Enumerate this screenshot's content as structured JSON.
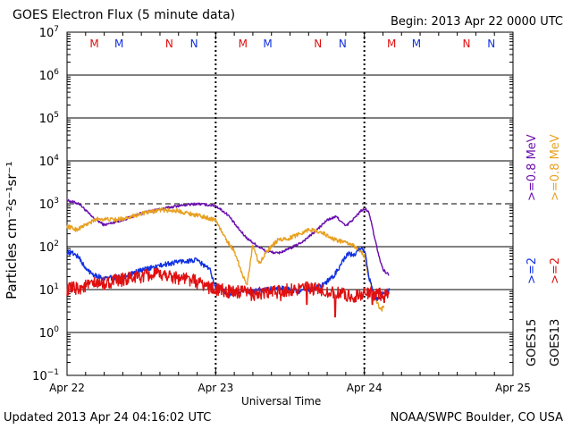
{
  "header": {
    "title": "GOES Electron Flux (5 minute data)",
    "begin": "Begin: 2013 Apr 22 0000 UTC"
  },
  "footer": {
    "updated": "Updated 2013 Apr 24 04:16:02 UTC",
    "credit": "NOAA/SWPC Boulder, CO USA"
  },
  "colors": {
    "purple": "#6a0dad",
    "orange": "#e8a020",
    "blue": "#1030e0",
    "red": "#e01010",
    "grid": "#000000"
  },
  "legend": {
    "goes15_ge08": ">=0.8  MeV",
    "goes15_ge2": ">=2",
    "goes13_ge08": ">=0.8  MeV",
    "goes13_ge2": ">=2",
    "goes15": "GOES15",
    "goes13": "GOES13"
  },
  "chart_data": {
    "type": "line",
    "title": "GOES Electron Flux (5 minute data)",
    "xlabel": "Universal Time",
    "ylabel": "Particles cm⁻²s⁻¹sr⁻¹",
    "yscale": "log",
    "ylim_exponent": [
      -1,
      7
    ],
    "y_ticks": [
      {
        "exp": 7,
        "label": "10",
        "sup": "7"
      },
      {
        "exp": 6,
        "label": "10",
        "sup": "6"
      },
      {
        "exp": 5,
        "label": "10",
        "sup": "5"
      },
      {
        "exp": 4,
        "label": "10",
        "sup": "4"
      },
      {
        "exp": 3,
        "label": "10",
        "sup": "3"
      },
      {
        "exp": 2,
        "label": "10",
        "sup": "2"
      },
      {
        "exp": 1,
        "label": "10",
        "sup": "1"
      },
      {
        "exp": 0,
        "label": "10",
        "sup": "0"
      },
      {
        "exp": -1,
        "label": "10",
        "sup": "−1"
      }
    ],
    "xlim_hours": [
      0,
      72
    ],
    "x_ticks": [
      {
        "hour": 0,
        "label": "Apr 22"
      },
      {
        "hour": 24,
        "label": "Apr 23"
      },
      {
        "hour": 48,
        "label": "Apr 24"
      },
      {
        "hour": 72,
        "label": "Apr 25"
      }
    ],
    "threshold_line": 1000,
    "day_markers_hours": [
      24,
      48
    ],
    "noon_midnight_markers": [
      {
        "hour": 4.4,
        "label": "M",
        "color": "#e01010"
      },
      {
        "hour": 8.4,
        "label": "M",
        "color": "#1030e0"
      },
      {
        "hour": 16.5,
        "label": "N",
        "color": "#e01010"
      },
      {
        "hour": 20.5,
        "label": "N",
        "color": "#1030e0"
      },
      {
        "hour": 28.4,
        "label": "M",
        "color": "#e01010"
      },
      {
        "hour": 32.4,
        "label": "M",
        "color": "#1030e0"
      },
      {
        "hour": 40.5,
        "label": "N",
        "color": "#e01010"
      },
      {
        "hour": 44.5,
        "label": "N",
        "color": "#1030e0"
      },
      {
        "hour": 52.4,
        "label": "M",
        "color": "#e01010"
      },
      {
        "hour": 56.4,
        "label": "M",
        "color": "#1030e0"
      },
      {
        "hour": 64.5,
        "label": "N",
        "color": "#e01010"
      },
      {
        "hour": 68.5,
        "label": "N",
        "color": "#1030e0"
      }
    ],
    "series": [
      {
        "name": "GOES15 >=0.8 MeV",
        "color": "#6a0dad",
        "noise": 0.03,
        "hours": [
          0,
          2,
          4,
          6,
          9,
          12,
          15,
          18,
          21,
          24,
          26,
          27.5,
          29,
          30.5,
          32,
          34,
          36,
          38,
          40,
          42,
          43.5,
          45,
          46.5,
          47.5,
          48.2,
          48.8,
          49.5,
          50,
          50.5,
          51,
          51.5,
          52
        ],
        "values": [
          1200,
          1000,
          500,
          320,
          420,
          600,
          750,
          900,
          1000,
          900,
          550,
          280,
          160,
          110,
          80,
          70,
          90,
          130,
          220,
          420,
          500,
          300,
          480,
          700,
          750,
          600,
          200,
          100,
          50,
          30,
          25,
          22
        ]
      },
      {
        "name": "GOES13 >=0.8 MeV",
        "color": "#e8a020",
        "noise": 0.05,
        "hours": [
          0,
          1.5,
          3,
          5,
          8,
          12,
          15,
          18,
          21,
          24,
          25.5,
          27,
          29,
          30,
          31,
          32,
          34,
          36,
          39,
          41,
          43,
          44.5,
          46,
          47,
          48,
          48.7,
          49.3,
          49.8,
          50.3,
          50.8,
          51.2
        ],
        "values": [
          300,
          250,
          320,
          450,
          420,
          580,
          720,
          680,
          540,
          420,
          160,
          80,
          12,
          110,
          40,
          70,
          140,
          160,
          250,
          220,
          150,
          130,
          110,
          90,
          60,
          20,
          10,
          6,
          4,
          3.5,
          4
        ]
      },
      {
        "name": "GOES15 >=2 MeV",
        "color": "#1030e0",
        "noise": 0.06,
        "hours": [
          0,
          1,
          2,
          3,
          4.5,
          6,
          9,
          12,
          15,
          18,
          21,
          23,
          24,
          26,
          28,
          30,
          32,
          34,
          36,
          38,
          41,
          43,
          44.5,
          45.5,
          46.5,
          47.5,
          48.2,
          48.7,
          49.5,
          50.2,
          51,
          51.5,
          52
        ],
        "values": [
          75,
          70,
          55,
          30,
          22,
          18,
          20,
          28,
          36,
          45,
          48,
          30,
          12,
          8,
          9,
          9,
          10,
          11,
          10,
          9,
          12,
          20,
          45,
          70,
          60,
          100,
          70,
          20,
          8,
          6,
          8,
          9,
          10
        ]
      },
      {
        "name": "GOES13 >=2 MeV",
        "color": "#e01010",
        "noise": 0.16,
        "hours": [
          0,
          2,
          4,
          6,
          8,
          10,
          12,
          14,
          16,
          18,
          20,
          22,
          24,
          26,
          28,
          30,
          32,
          34,
          36,
          38,
          40,
          42,
          44,
          46,
          48,
          50,
          51,
          52
        ],
        "values": [
          10,
          11,
          13,
          14,
          16,
          18,
          20,
          22,
          22,
          19,
          17,
          13,
          10,
          9,
          8.5,
          8,
          8,
          9,
          10,
          11,
          10,
          9,
          8,
          7,
          8,
          8,
          8,
          8
        ],
        "dips": [
          {
            "hour": 43.3,
            "value": 2.3
          },
          {
            "hour": 38.7,
            "value": 4.5
          },
          {
            "hour": 49.3,
            "value": 4.5
          },
          {
            "hour": 34.5,
            "value": 5.5
          },
          {
            "hour": 51.2,
            "value": 5.0
          }
        ]
      }
    ]
  }
}
